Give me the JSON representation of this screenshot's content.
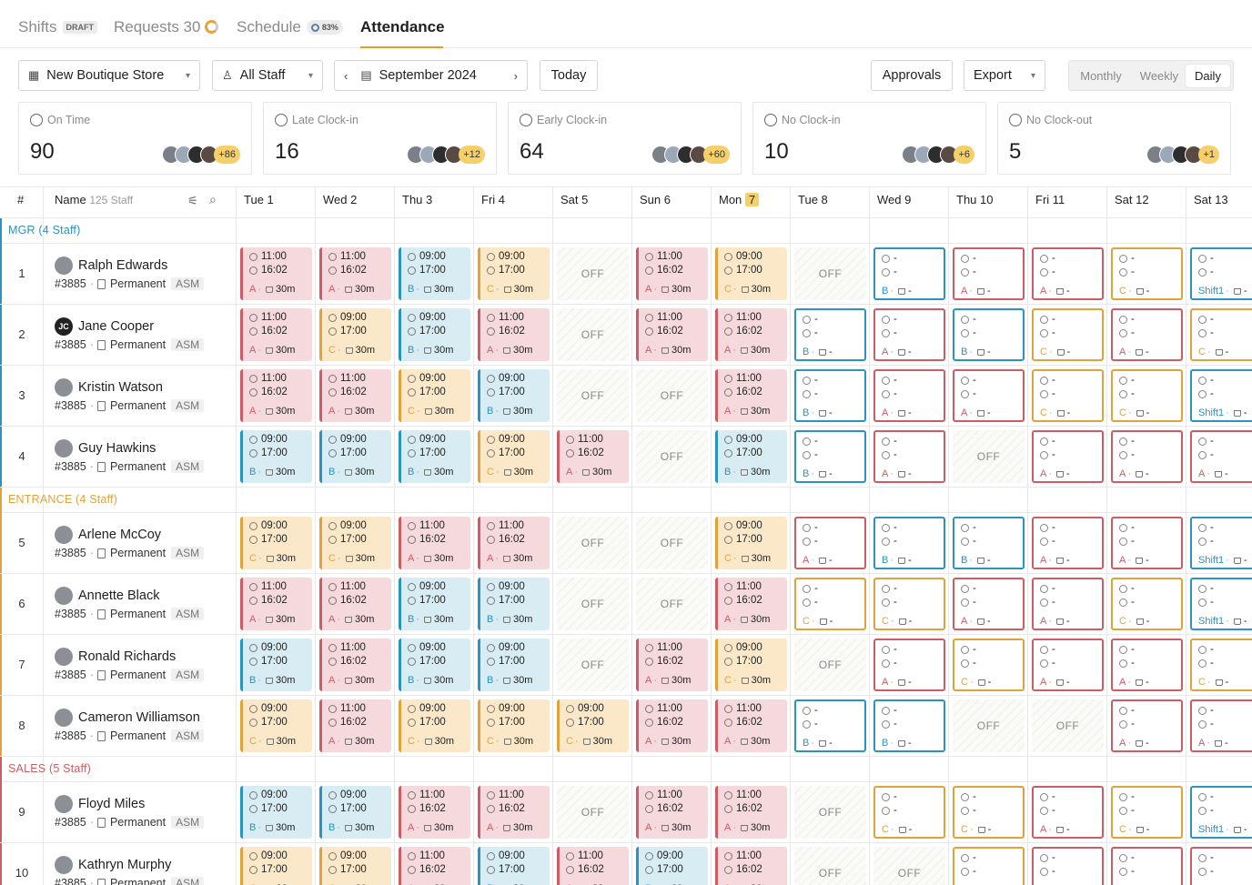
{
  "tabs": [
    {
      "label": "Shifts",
      "badge": "DRAFT"
    },
    {
      "label": "Requests 30"
    },
    {
      "label": "Schedule",
      "badge": "83%"
    },
    {
      "label": "Attendance",
      "active": true
    }
  ],
  "toolbar": {
    "store": "New Boutique Store",
    "staff": "All Staff",
    "month": "September 2024",
    "today": "Today",
    "approvals": "Approvals",
    "export": "Export",
    "views": [
      "Monthly",
      "Weekly",
      "Daily"
    ],
    "active_view": "Daily"
  },
  "stats": [
    {
      "label": "On Time",
      "value": "90",
      "more": "+86"
    },
    {
      "label": "Late Clock-in",
      "value": "16",
      "more": "+12"
    },
    {
      "label": "Early Clock-in",
      "value": "64",
      "more": "+60"
    },
    {
      "label": "No Clock-in",
      "value": "10",
      "more": "+6"
    },
    {
      "label": "No Clock-out",
      "value": "5",
      "more": "+1"
    }
  ],
  "table": {
    "num_header": "#",
    "name_header": "Name",
    "staff_count": "125 Staff",
    "days": [
      "Tue 1",
      "Wed 2",
      "Thu 3",
      "Fri 4",
      "Sat 5",
      "Sun 6",
      "Mon",
      "Tue 8",
      "Wed 9",
      "Thu 10",
      "Fri 11",
      "Sat 12",
      "Sat 13"
    ],
    "today_badge": "7",
    "today_index": 6
  },
  "groups": [
    {
      "label": "MGR (4 Staff)",
      "color": "#2a93bf",
      "rows": [
        {
          "num": "1",
          "name": "Ralph Edwards",
          "initials": "",
          "cells": [
            "A",
            "A",
            "B",
            "C",
            "OFF",
            "A",
            "C",
            "OFF",
            "oB",
            "oA",
            "oA",
            "oC",
            "oS"
          ]
        },
        {
          "num": "2",
          "name": "Jane Cooper",
          "initials": "JC",
          "cells": [
            "A",
            "C",
            "B",
            "A",
            "OFF",
            "A",
            "A",
            "oB",
            "oA",
            "oB",
            "oC",
            "oA",
            "oC"
          ]
        },
        {
          "num": "3",
          "name": "Kristin Watson",
          "initials": "",
          "cells": [
            "A",
            "A",
            "C",
            "B",
            "OFF",
            "OFF",
            "A",
            "oB",
            "oA",
            "oA",
            "oC",
            "oC",
            "oS"
          ]
        },
        {
          "num": "4",
          "name": "Guy Hawkins",
          "initials": "",
          "cells": [
            "B",
            "B",
            "B",
            "C",
            "A",
            "OFF",
            "B",
            "oB",
            "oA",
            "OFF",
            "oA",
            "oA",
            "oA"
          ]
        }
      ]
    },
    {
      "label": "ENTRANCE (4 Staff)",
      "color": "#e1a23c",
      "rows": [
        {
          "num": "5",
          "name": "Arlene McCoy",
          "initials": "",
          "cells": [
            "C",
            "C",
            "A",
            "A",
            "OFF",
            "OFF",
            "C",
            "oA",
            "oB",
            "oB",
            "oA",
            "oA",
            "oS"
          ]
        },
        {
          "num": "6",
          "name": "Annette Black",
          "initials": "",
          "cells": [
            "A",
            "A",
            "B",
            "B",
            "OFF",
            "OFF",
            "A",
            "oC",
            "oC",
            "oA",
            "oA",
            "oC",
            "oS"
          ]
        },
        {
          "num": "7",
          "name": "Ronald Richards",
          "initials": "",
          "cells": [
            "B",
            "A",
            "B",
            "B",
            "OFF",
            "A",
            "C",
            "OFF",
            "oA",
            "oC",
            "oA",
            "oA",
            "oC"
          ]
        },
        {
          "num": "8",
          "name": "Cameron Williamson",
          "initials": "",
          "cells": [
            "C",
            "A",
            "C",
            "C",
            "C",
            "A",
            "A",
            "oB",
            "oB",
            "OFF",
            "OFF",
            "oA",
            "oA"
          ]
        }
      ]
    },
    {
      "label": "SALES (5 Staff)",
      "color": "#cf5b64",
      "rows": [
        {
          "num": "9",
          "name": "Floyd Miles",
          "initials": "",
          "cells": [
            "B",
            "B",
            "A",
            "A",
            "OFF",
            "A",
            "A",
            "OFF",
            "oC",
            "oC",
            "oA",
            "oC",
            "oS"
          ]
        },
        {
          "num": "10",
          "name": "Kathryn Murphy",
          "initials": "",
          "cells": [
            "C",
            "C",
            "A",
            "B",
            "A",
            "B",
            "A",
            "OFF",
            "OFF",
            "oC",
            "oA",
            "oA",
            "oA"
          ]
        }
      ]
    }
  ],
  "employee_meta": {
    "id": "#3885",
    "type": "Permanent",
    "role": "ASM"
  },
  "shift_templates": {
    "A": {
      "start": "11:00",
      "end": "16:02",
      "code": "A",
      "brk": "30m"
    },
    "B": {
      "start": "09:00",
      "end": "17:00",
      "code": "B",
      "brk": "30m"
    },
    "C": {
      "start": "09:00",
      "end": "17:00",
      "code": "C",
      "brk": "30m"
    },
    "oA": {
      "start": "-",
      "end": "-",
      "code": "A",
      "brk": "-"
    },
    "oB": {
      "start": "-",
      "end": "-",
      "code": "B",
      "brk": "-"
    },
    "oC": {
      "start": "-",
      "end": "-",
      "code": "C",
      "brk": "-"
    },
    "oS": {
      "start": "-",
      "end": "-",
      "code": "Shift1",
      "brk": "-"
    }
  },
  "off_label": "OFF",
  "colors": {
    "A": "#cf5b64",
    "B": "#2a93bf",
    "C": "#e1a23c",
    "accent": "#e0a030"
  }
}
